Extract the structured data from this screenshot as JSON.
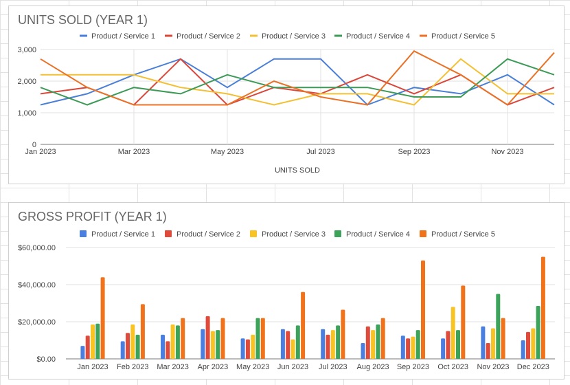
{
  "chart_data": [
    {
      "type": "line",
      "title": "UNITS SOLD (YEAR 1)",
      "xlabel": "UNITS SOLD",
      "ylabel": "",
      "categories": [
        "Jan 2023",
        "Feb 2023",
        "Mar 2023",
        "Apr 2023",
        "May 2023",
        "Jun 2023",
        "Jul 2023",
        "Aug 2023",
        "Sep 2023",
        "Oct 2023",
        "Nov 2023",
        "Dec 2023"
      ],
      "x_tick_labels": [
        "Jan 2023",
        "Mar 2023",
        "May 2023",
        "Jul 2023",
        "Sep 2023",
        "Nov 2023"
      ],
      "y_ticks": [
        "0",
        "1,000",
        "2,000",
        "3,000"
      ],
      "ylim": [
        0,
        3000
      ],
      "grid": true,
      "legend": "top",
      "series": [
        {
          "name": "Product / Service 1",
          "color": "#4a7fd8",
          "values": [
            1250,
            1600,
            2200,
            2700,
            1800,
            2700,
            2700,
            1250,
            1800,
            1600,
            2200,
            1250
          ]
        },
        {
          "name": "Product / Service 2",
          "color": "#d9473a",
          "values": [
            1600,
            1800,
            1250,
            2700,
            1250,
            1800,
            1600,
            2200,
            1600,
            2200,
            1250,
            1800
          ]
        },
        {
          "name": "Product / Service 3",
          "color": "#f3c033",
          "values": [
            2200,
            2200,
            2200,
            1800,
            1600,
            1250,
            1600,
            1600,
            1250,
            2700,
            1600,
            1600
          ]
        },
        {
          "name": "Product / Service 4",
          "color": "#3d9a57",
          "values": [
            1800,
            1250,
            1800,
            1600,
            2200,
            1800,
            1800,
            1800,
            1500,
            1500,
            2700,
            2200
          ]
        },
        {
          "name": "Product / Service 5",
          "color": "#ea7126",
          "values": [
            2700,
            1800,
            1250,
            1250,
            1250,
            2000,
            1500,
            1250,
            2950,
            2200,
            1250,
            2900
          ]
        }
      ]
    },
    {
      "type": "bar",
      "title": "GROSS PROFIT (YEAR 1)",
      "xlabel": "",
      "ylabel": "",
      "categories": [
        "Jan 2023",
        "Feb 2023",
        "Mar 2023",
        "Apr 2023",
        "May 2023",
        "Jun 2023",
        "Jul 2023",
        "Aug 2023",
        "Sep 2023",
        "Oct 2023",
        "Nov 2023",
        "Dec 2023"
      ],
      "y_ticks": [
        "$0.00",
        "$20,000.00",
        "$40,000.00",
        "$60,000.00"
      ],
      "ylim": [
        0,
        60000
      ],
      "grid": true,
      "legend": "top",
      "series": [
        {
          "name": "Product / Service 1",
          "color": "#4a7fe0",
          "values": [
            7000,
            9500,
            13000,
            16000,
            11000,
            16000,
            16000,
            8500,
            12500,
            11000,
            17500,
            10000
          ]
        },
        {
          "name": "Product / Service 2",
          "color": "#e04a3a",
          "values": [
            12500,
            14000,
            9500,
            23000,
            10500,
            15000,
            13000,
            17500,
            11000,
            15000,
            8500,
            14500
          ]
        },
        {
          "name": "Product / Service 3",
          "color": "#f7c325",
          "values": [
            18500,
            18500,
            18500,
            15000,
            13000,
            10500,
            15500,
            15500,
            12000,
            28000,
            16500,
            16500
          ]
        },
        {
          "name": "Product / Service 4",
          "color": "#3ca45a",
          "values": [
            19000,
            13000,
            18000,
            15500,
            22000,
            18000,
            18000,
            18500,
            15500,
            15500,
            35000,
            28500
          ]
        },
        {
          "name": "Product / Service 5",
          "color": "#f0731c",
          "values": [
            44000,
            29500,
            22000,
            22000,
            22000,
            36000,
            26500,
            22000,
            53000,
            39500,
            22000,
            55000
          ]
        }
      ]
    }
  ]
}
